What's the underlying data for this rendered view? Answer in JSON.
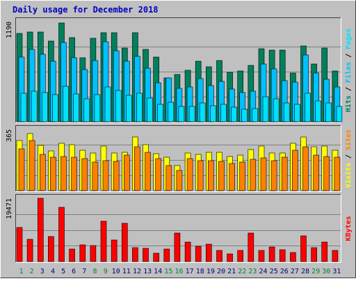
{
  "colors": {
    "background": "#c0c0c0",
    "plot_bg": "#c0c0c0",
    "grid": "#808080",
    "title": "#0000c0",
    "hits": "#00805c",
    "files": "#00c0ff",
    "pages": "#00e0ff",
    "visits": "#ffff00",
    "sites": "#ff8000",
    "kbytes": "#ff0000",
    "weekday_label": "#008040",
    "day_label": "#000080"
  },
  "chart_data": {
    "type": "bar",
    "title": "Daily usage for December 2018",
    "days": [
      "1",
      "2",
      "3",
      "4",
      "5",
      "6",
      "7",
      "8",
      "9",
      "10",
      "11",
      "12",
      "13",
      "14",
      "15",
      "16",
      "17",
      "18",
      "19",
      "20",
      "21",
      "22",
      "23",
      "24",
      "25",
      "26",
      "27",
      "28",
      "29",
      "30",
      "31"
    ],
    "weekend_days": [
      "1",
      "2",
      "8",
      "9",
      "15",
      "16",
      "22",
      "23",
      "29",
      "30"
    ],
    "panels": [
      {
        "id": "hits",
        "ymax": 1190,
        "ymax_label": "1190",
        "side_label": [
          "Hits",
          " / ",
          "Files",
          " / ",
          "Pages"
        ],
        "side_label_colors": [
          "hits",
          "sep",
          "files",
          "sep",
          "pages"
        ],
        "series": [
          {
            "name": "Hits",
            "color_key": "hits",
            "values": [
              1050,
              1070,
              1070,
              960,
              1170,
              1000,
              760,
              990,
              1060,
              1060,
              880,
              1060,
              860,
              770,
              520,
              560,
              610,
              720,
              650,
              730,
              590,
              600,
              670,
              870,
              850,
              850,
              580,
              900,
              690,
              880,
              600
            ]
          },
          {
            "name": "Files",
            "color_key": "files",
            "values": [
              770,
              860,
              800,
              720,
              940,
              760,
              620,
              730,
              950,
              840,
              720,
              780,
              640,
              460,
              520,
              400,
              410,
              510,
              430,
              480,
              390,
              350,
              360,
              690,
              630,
              490,
              470,
              790,
              580,
              500,
              410
            ]
          },
          {
            "name": "Pages",
            "values": [
              340,
              360,
              350,
              320,
              420,
              330,
              270,
              320,
              410,
              370,
              310,
              340,
              280,
              210,
              230,
              180,
              180,
              220,
              190,
              210,
              170,
              150,
              160,
              300,
              270,
              220,
              210,
              340,
              250,
              220,
              180
            ],
            "color_key": "pages"
          }
        ]
      },
      {
        "id": "visits",
        "ymax": 365,
        "ymax_label": "365",
        "side_label": [
          "Visits",
          " / ",
          "Sites"
        ],
        "side_label_colors": [
          "visits",
          "sep",
          "sites"
        ],
        "series": [
          {
            "name": "Visits",
            "color_key": "visits",
            "values": [
              300,
              340,
              270,
              235,
              280,
              275,
              240,
              225,
              265,
              225,
              230,
              320,
              275,
              220,
              200,
              150,
              225,
              215,
              230,
              230,
              205,
              210,
              245,
              265,
              225,
              225,
              280,
              320,
              260,
              265,
              240
            ]
          },
          {
            "name": "Sites",
            "color_key": "sites",
            "values": [
              250,
              300,
              215,
              200,
              205,
              200,
              190,
              170,
              180,
              175,
              210,
              260,
              230,
              190,
              150,
              120,
              190,
              180,
              180,
              175,
              160,
              170,
              185,
              195,
              180,
              200,
              240,
              260,
              210,
              205,
              200
            ]
          }
        ]
      },
      {
        "id": "kbytes",
        "ymax": 19471,
        "ymax_label": "19471",
        "side_label": [
          "KBytes"
        ],
        "side_label_colors": [
          "kbytes"
        ],
        "series": [
          {
            "name": "KBytes",
            "color_key": "kbytes",
            "values": [
              10500,
              6900,
              19471,
              7700,
              16700,
              3800,
              5100,
              5000,
              12500,
              6600,
              11800,
              4200,
              4000,
              2500,
              3800,
              8800,
              6000,
              4700,
              5400,
              3400,
              2300,
              3400,
              8700,
              3400,
              4600,
              3600,
              2800,
              8000,
              4300,
              5900,
              3400
            ]
          }
        ]
      }
    ]
  }
}
